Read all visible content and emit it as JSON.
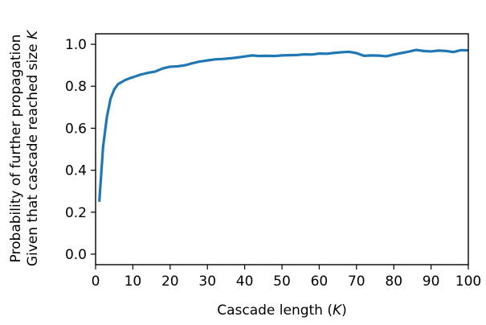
{
  "chart_data": {
    "type": "line",
    "title": "",
    "xlabel": "Cascade length (",
    "xlabel_var": "K",
    "xlabel_suffix": ")",
    "ylabel_lines": [
      {
        "text": "Probability of further propagation",
        "var": ""
      },
      {
        "text": "Given that cascade reached size ",
        "var": "K"
      }
    ],
    "xlim": [
      0,
      100
    ],
    "ylim": [
      -0.05,
      1.05
    ],
    "xticks": [
      0,
      10,
      20,
      30,
      40,
      50,
      60,
      70,
      80,
      90,
      100
    ],
    "yticks": [
      0.0,
      0.2,
      0.4,
      0.6,
      0.8,
      1.0
    ],
    "xtick_labels": [
      "0",
      "10",
      "20",
      "30",
      "40",
      "50",
      "60",
      "70",
      "80",
      "90",
      "100"
    ],
    "ytick_labels": [
      "0.0",
      "0.2",
      "0.4",
      "0.6",
      "0.8",
      "1.0"
    ],
    "grid": false,
    "color": "#1f77b4",
    "x": [
      1,
      2,
      3,
      4,
      5,
      6,
      7,
      8,
      9,
      10,
      12,
      14,
      16,
      18,
      20,
      22,
      24,
      26,
      28,
      30,
      32,
      34,
      36,
      38,
      40,
      42,
      44,
      46,
      48,
      50,
      52,
      54,
      56,
      58,
      60,
      62,
      64,
      66,
      68,
      70,
      72,
      74,
      76,
      78,
      80,
      82,
      84,
      86,
      88,
      90,
      92,
      94,
      96,
      98,
      100
    ],
    "y": [
      0.25,
      0.51,
      0.65,
      0.74,
      0.785,
      0.81,
      0.82,
      0.83,
      0.837,
      0.843,
      0.855,
      0.864,
      0.87,
      0.885,
      0.893,
      0.895,
      0.9,
      0.91,
      0.918,
      0.923,
      0.928,
      0.93,
      0.933,
      0.937,
      0.942,
      0.947,
      0.944,
      0.945,
      0.944,
      0.947,
      0.948,
      0.949,
      0.952,
      0.951,
      0.956,
      0.955,
      0.959,
      0.962,
      0.964,
      0.958,
      0.945,
      0.947,
      0.946,
      0.943,
      0.951,
      0.958,
      0.965,
      0.973,
      0.968,
      0.966,
      0.97,
      0.968,
      0.963,
      0.972,
      0.971
    ]
  }
}
